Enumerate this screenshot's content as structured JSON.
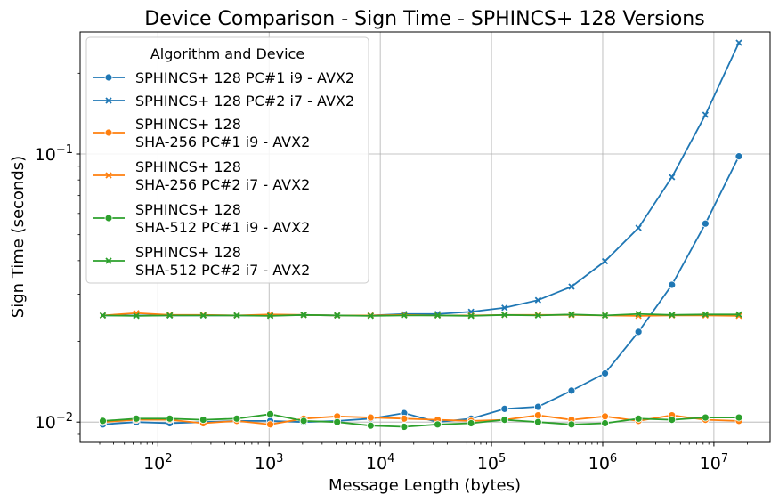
{
  "chart_data": {
    "type": "line",
    "title": "Device Comparison - Sign Time - SPHINCS+ 128 Versions",
    "xlabel": "Message Length (bytes)",
    "ylabel": "Sign Time (seconds)",
    "xscale": "log",
    "yscale": "log",
    "xlim": [
      20,
      32000000
    ],
    "ylim": [
      0.0084,
      0.285
    ],
    "grid": true,
    "legend_title": "Algorithm and Device",
    "legend_placement": "top-left",
    "x_ticks": [
      {
        "value": 100,
        "base": "10",
        "exp": "2"
      },
      {
        "value": 1000,
        "base": "10",
        "exp": "3"
      },
      {
        "value": 10000,
        "base": "10",
        "exp": "4"
      },
      {
        "value": 100000,
        "base": "10",
        "exp": "5"
      },
      {
        "value": 1000000,
        "base": "10",
        "exp": "6"
      },
      {
        "value": 10000000,
        "base": "10",
        "exp": "7"
      }
    ],
    "y_ticks": [
      {
        "value": 0.01,
        "base": "10",
        "exp": "−2"
      },
      {
        "value": 0.1,
        "base": "10",
        "exp": "−1"
      }
    ],
    "x": [
      32,
      64,
      128,
      256,
      512,
      1024,
      2048,
      4096,
      8192,
      16384,
      32768,
      65536,
      131072,
      262144,
      524288,
      1048576,
      2097152,
      4194304,
      8388608,
      16777216
    ],
    "series": [
      {
        "name_lines": [
          "SPHINCS+ 128 PC#1 i9 - AVX2"
        ],
        "color": "#1f77b4",
        "marker": "circle",
        "values": [
          0.0098,
          0.01,
          0.0099,
          0.01,
          0.0101,
          0.0101,
          0.01,
          0.0101,
          0.0103,
          0.0108,
          0.01,
          0.0103,
          0.0112,
          0.0114,
          0.0131,
          0.0152,
          0.0217,
          0.0325,
          0.055,
          0.098
        ]
      },
      {
        "name_lines": [
          "SPHINCS+ 128 PC#2 i7 - AVX2"
        ],
        "color": "#1f77b4",
        "marker": "x",
        "values": [
          0.025,
          0.025,
          0.025,
          0.025,
          0.025,
          0.025,
          0.0251,
          0.025,
          0.025,
          0.0253,
          0.0253,
          0.0258,
          0.0267,
          0.0285,
          0.032,
          0.0398,
          0.053,
          0.082,
          0.14,
          0.26
        ]
      },
      {
        "name_lines": [
          "SPHINCS+ 128",
          "SHA-256 PC#1 i9 - AVX2"
        ],
        "color": "#ff7f0e",
        "marker": "circle",
        "values": [
          0.01,
          0.0102,
          0.0102,
          0.0099,
          0.0101,
          0.0098,
          0.0103,
          0.0105,
          0.0104,
          0.0103,
          0.0102,
          0.0101,
          0.0102,
          0.0106,
          0.0102,
          0.0105,
          0.0101,
          0.0106,
          0.0102,
          0.0101
        ]
      },
      {
        "name_lines": [
          "SPHINCS+ 128",
          "SHA-256 PC#2 i7 - AVX2"
        ],
        "color": "#ff7f0e",
        "marker": "x",
        "values": [
          0.025,
          0.0255,
          0.0251,
          0.0251,
          0.025,
          0.0252,
          0.0251,
          0.025,
          0.025,
          0.0251,
          0.025,
          0.025,
          0.0251,
          0.0251,
          0.0251,
          0.025,
          0.0249,
          0.025,
          0.025,
          0.0249
        ]
      },
      {
        "name_lines": [
          "SPHINCS+ 128",
          "SHA-512 PC#1 i9 - AVX2"
        ],
        "color": "#2ca02c",
        "marker": "circle",
        "values": [
          0.0101,
          0.0103,
          0.0103,
          0.0102,
          0.0103,
          0.0107,
          0.0101,
          0.01,
          0.0097,
          0.0096,
          0.0098,
          0.0099,
          0.0102,
          0.01,
          0.0098,
          0.0099,
          0.0103,
          0.0102,
          0.0104,
          0.0104
        ]
      },
      {
        "name_lines": [
          "SPHINCS+ 128",
          "SHA-512 PC#2 i7 - AVX2"
        ],
        "color": "#2ca02c",
        "marker": "x",
        "values": [
          0.025,
          0.0249,
          0.025,
          0.025,
          0.025,
          0.0249,
          0.0251,
          0.025,
          0.0249,
          0.025,
          0.025,
          0.0249,
          0.0251,
          0.025,
          0.0252,
          0.025,
          0.0253,
          0.0251,
          0.0252,
          0.0252
        ]
      }
    ]
  }
}
